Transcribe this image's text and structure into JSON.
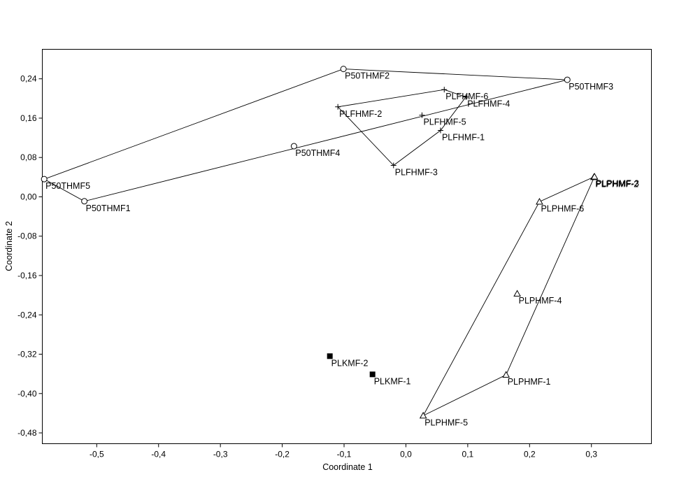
{
  "chart_data": {
    "type": "scatter",
    "title": "",
    "xlabel": "Coordinate 1",
    "ylabel": "Coordinate 2",
    "xlim": [
      -0.588,
      0.397
    ],
    "ylim": [
      -0.502,
      0.3
    ],
    "x_ticks": [
      -0.5,
      -0.4,
      -0.3,
      -0.2,
      -0.1,
      0.0,
      0.1,
      0.2,
      0.3
    ],
    "x_tick_labels": [
      "-0,5",
      "-0,4",
      "-0,3",
      "-0,2",
      "-0,1",
      "0,0",
      "0,1",
      "0,2",
      "0,3"
    ],
    "y_ticks": [
      0.24,
      0.16,
      0.08,
      0.0,
      -0.08,
      -0.16,
      -0.24,
      -0.32,
      -0.4,
      -0.48
    ],
    "y_tick_labels": [
      "0,24",
      "0,16",
      "0,08",
      "0,00",
      "-0,08",
      "-0,16",
      "-0,24",
      "-0,32",
      "-0,40",
      "-0,48"
    ],
    "grid": false,
    "series": [
      {
        "marker": "circle",
        "hull": [
          "P50THMF2",
          "P50THMF3",
          "P50THMF1",
          "P50THMF5"
        ],
        "points": [
          {
            "label": "P50THMF1",
            "x": -0.52,
            "y": -0.009
          },
          {
            "label": "P50THMF2",
            "x": -0.101,
            "y": 0.26
          },
          {
            "label": "P50THMF3",
            "x": 0.261,
            "y": 0.238
          },
          {
            "label": "P50THMF4",
            "x": -0.181,
            "y": 0.103
          },
          {
            "label": "P50THMF5",
            "x": -0.585,
            "y": 0.036
          }
        ]
      },
      {
        "marker": "plus",
        "hull": [
          "PLFHMF-6",
          "PLFHMF-4",
          "PLFHMF-1",
          "PLFHMF-3",
          "PLFHMF-2"
        ],
        "points": [
          {
            "label": "PLFHMF-1",
            "x": 0.056,
            "y": 0.135
          },
          {
            "label": "PLFHMF-2",
            "x": -0.11,
            "y": 0.183
          },
          {
            "label": "PLFHMF-3",
            "x": -0.02,
            "y": 0.064
          },
          {
            "label": "PLFHMF-4",
            "x": 0.097,
            "y": 0.203
          },
          {
            "label": "PLFHMF-5",
            "x": 0.026,
            "y": 0.166
          },
          {
            "label": "PLFHMF-6",
            "x": 0.062,
            "y": 0.218
          }
        ]
      },
      {
        "marker": "triangle",
        "hull": [
          "PLPHMF-3",
          "PLPHMF-1",
          "PLPHMF-5",
          "PLPHMF-6"
        ],
        "points": [
          {
            "label": "PLPHMF-1",
            "x": 0.162,
            "y": -0.362
          },
          {
            "label": "PLPHMF-2",
            "x": 0.304,
            "y": 0.04
          },
          {
            "label": "PLPHMF-3",
            "x": 0.305,
            "y": 0.041
          },
          {
            "label": "PLPHMF-4",
            "x": 0.18,
            "y": -0.197
          },
          {
            "label": "PLPHMF-5",
            "x": 0.028,
            "y": -0.445
          },
          {
            "label": "PLPHMF-6",
            "x": 0.216,
            "y": -0.01
          }
        ]
      },
      {
        "marker": "square",
        "hull": [],
        "points": [
          {
            "label": "PLKMF-1",
            "x": -0.054,
            "y": -0.361
          },
          {
            "label": "PLKMF-2",
            "x": -0.123,
            "y": -0.324
          }
        ]
      }
    ]
  }
}
